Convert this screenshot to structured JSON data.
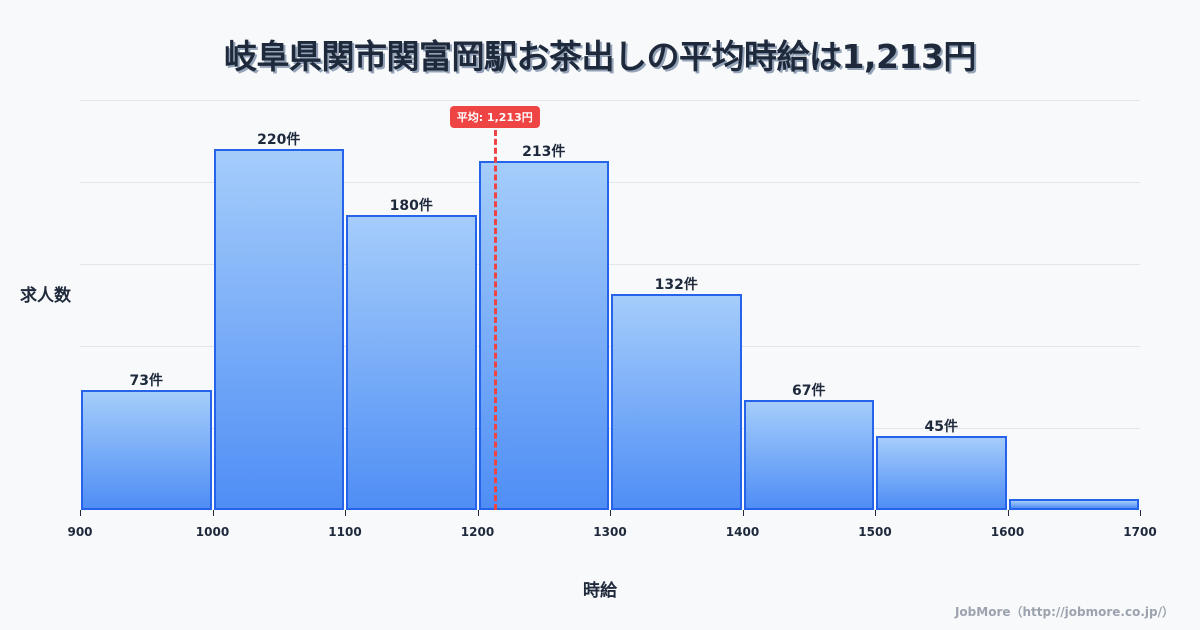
{
  "title": "岐阜県関市関富岡駅お茶出しの平均時給は1,213円",
  "credit": "JobMore（http://jobmore.co.jp/）",
  "chart_data": {
    "type": "bar",
    "title": "岐阜県関市関富岡駅お茶出しの平均時給は1,213円",
    "xlabel": "時給",
    "ylabel": "求人数",
    "categories": [
      "900-1000",
      "1000-1100",
      "1100-1200",
      "1200-1300",
      "1300-1400",
      "1400-1500",
      "1500-1600",
      "1600-1700"
    ],
    "bin_edges": [
      900,
      1000,
      1100,
      1200,
      1300,
      1400,
      1500,
      1600,
      1700
    ],
    "values": [
      73,
      220,
      180,
      213,
      132,
      67,
      45,
      7
    ],
    "labels": [
      "73件",
      "220件",
      "180件",
      "213件",
      "132件",
      "67件",
      "45件",
      ""
    ],
    "x_ticks": [
      "900",
      "1000",
      "1100",
      "1200",
      "1300",
      "1400",
      "1500",
      "1600",
      "1700"
    ],
    "ylim": [
      0,
      250
    ],
    "grid": true,
    "average": {
      "value": 1213,
      "label": "平均: 1,213円",
      "color": "#ef4444"
    },
    "bar_color": "#4f8ef5",
    "bar_border_color": "#2563eb"
  }
}
